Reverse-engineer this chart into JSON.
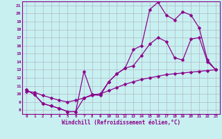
{
  "xlabel": "Windchill (Refroidissement éolien,°C)",
  "bg_color": "#c8f0f0",
  "line_color": "#8b008b",
  "grid_color": "#b0b8c8",
  "x_hours": [
    0,
    1,
    2,
    3,
    4,
    5,
    6,
    7,
    8,
    9,
    10,
    11,
    12,
    13,
    14,
    15,
    16,
    17,
    18,
    19,
    20,
    21,
    22,
    23
  ],
  "series1": [
    10.5,
    9.9,
    8.8,
    8.5,
    8.2,
    7.8,
    7.8,
    9.5,
    9.9,
    10.0,
    11.5,
    12.5,
    13.2,
    15.5,
    16.0,
    20.5,
    21.4,
    19.8,
    19.2,
    20.2,
    19.8,
    18.2,
    14.2,
    13.0
  ],
  "series2": [
    10.5,
    9.9,
    8.8,
    8.5,
    8.2,
    7.8,
    7.8,
    12.8,
    9.9,
    9.8,
    11.5,
    12.5,
    13.2,
    13.5,
    14.8,
    16.2,
    17.0,
    16.5,
    14.5,
    14.2,
    16.8,
    17.0,
    14.0,
    13.0
  ],
  "series3": [
    10.3,
    10.2,
    9.8,
    9.5,
    9.2,
    9.0,
    9.2,
    9.5,
    9.8,
    10.0,
    10.4,
    10.8,
    11.2,
    11.5,
    11.8,
    12.0,
    12.2,
    12.4,
    12.5,
    12.6,
    12.7,
    12.8,
    12.9,
    13.0
  ],
  "ylim": [
    7.5,
    21.5
  ],
  "yticks": [
    8,
    9,
    10,
    11,
    12,
    13,
    14,
    15,
    16,
    17,
    18,
    19,
    20,
    21
  ],
  "xlim": [
    -0.5,
    23.5
  ],
  "xticks": [
    0,
    1,
    2,
    3,
    4,
    5,
    6,
    7,
    8,
    9,
    10,
    11,
    12,
    13,
    14,
    15,
    16,
    17,
    18,
    19,
    20,
    21,
    22,
    23
  ]
}
